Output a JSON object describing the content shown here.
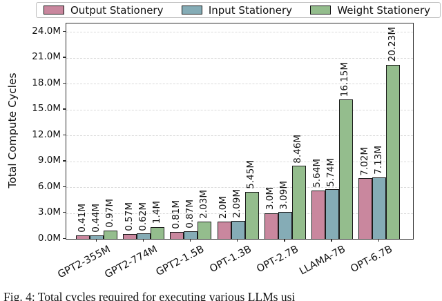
{
  "caption": "Fig. 4: Total cycles required for executing various LLMs usi",
  "chart_data": {
    "type": "bar",
    "title": "",
    "xlabel": "",
    "ylabel": "Total Compute Cycles",
    "ylim": [
      0,
      25
    ],
    "grid": "horizontal-dashed",
    "legend_position": "top",
    "ytick_values": [
      0,
      3,
      6,
      9,
      12,
      15,
      18,
      21,
      24
    ],
    "ytick_labels": [
      "0.0M",
      "3.0M",
      "6.0M",
      "9.0M",
      "12.0M",
      "15.0M",
      "18.0M",
      "21.0M",
      "24.0M"
    ],
    "categories": [
      "GPT2-355M",
      "GPT2-774M",
      "GPT2-1.5B",
      "OPT-1.3B",
      "OPT-2.7B",
      "LLAMA-7B",
      "OPT-6.7B"
    ],
    "series": [
      {
        "name": "Output Stationery",
        "color": "#c9879e",
        "values": [
          0.41,
          0.57,
          0.81,
          2.0,
          3.0,
          5.64,
          7.02
        ],
        "value_labels": [
          "0.41M",
          "0.57M",
          "0.81M",
          "2.0M",
          "3.0M",
          "5.64M",
          "7.02M"
        ]
      },
      {
        "name": "Input Stationery",
        "color": "#85acb6",
        "values": [
          0.44,
          0.62,
          0.87,
          2.09,
          3.09,
          5.74,
          7.13
        ],
        "value_labels": [
          "0.44M",
          "0.62M",
          "0.87M",
          "2.09M",
          "3.09M",
          "5.74M",
          "7.13M"
        ]
      },
      {
        "name": "Weight Stationery",
        "color": "#94bd8d",
        "values": [
          0.97,
          1.4,
          2.03,
          5.45,
          8.46,
          16.15,
          20.23
        ],
        "value_labels": [
          "0.97M",
          "1.4M",
          "2.03M",
          "5.45M",
          "8.46M",
          "16.15M",
          "20.23M"
        ]
      }
    ]
  }
}
